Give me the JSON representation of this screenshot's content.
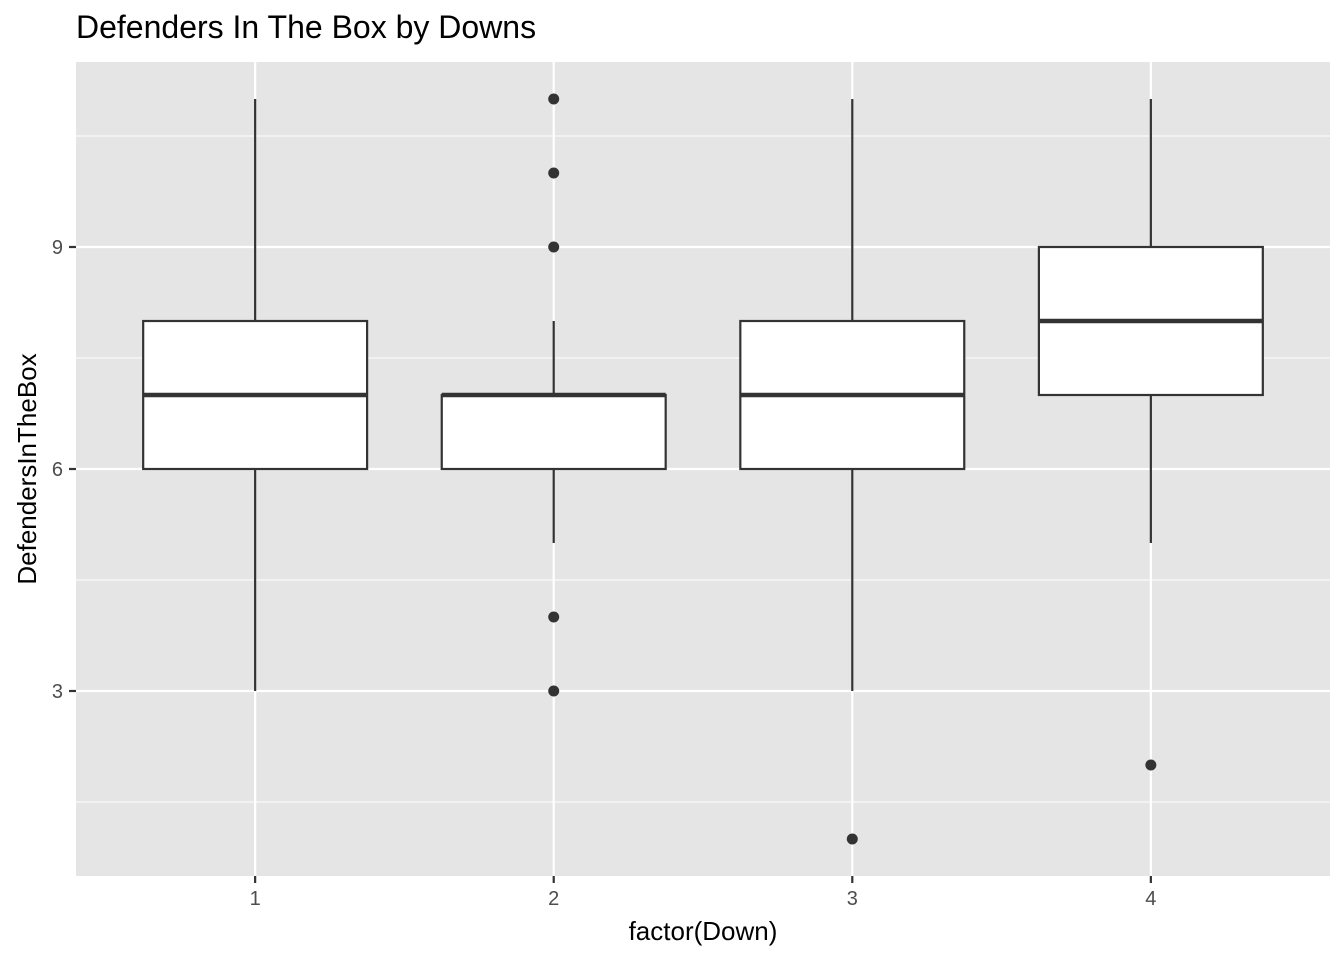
{
  "chart_data": {
    "type": "boxplot",
    "title": "Defenders In The Box by Downs",
    "xlabel": "factor(Down)",
    "ylabel": "DefendersInTheBox",
    "ylim": [
      0.5,
      11.5
    ],
    "y_ticks": [
      3,
      6,
      9
    ],
    "categories": [
      "1",
      "2",
      "3",
      "4"
    ],
    "boxes": [
      {
        "category": "1",
        "whisker_low": 3,
        "q1": 6,
        "median": 7,
        "q3": 8,
        "whisker_high": 11,
        "outliers": []
      },
      {
        "category": "2",
        "whisker_low": 5,
        "q1": 6,
        "median": 7,
        "q3": 7,
        "whisker_high": 8,
        "outliers": [
          3,
          4,
          9,
          10,
          11
        ]
      },
      {
        "category": "3",
        "whisker_low": 3,
        "q1": 6,
        "median": 7,
        "q3": 8,
        "whisker_high": 11,
        "outliers": [
          1
        ]
      },
      {
        "category": "4",
        "whisker_low": 5,
        "q1": 7,
        "median": 8,
        "q3": 9,
        "whisker_high": 11,
        "outliers": [
          2
        ]
      }
    ],
    "grid": true,
    "legend": "none",
    "colors": {
      "panel_background": "#e5e5e5",
      "grid": "#ffffff",
      "box_fill": "#ffffff",
      "box_line": "#333333",
      "tick_text": "#4d4d4d",
      "text": "#000000"
    }
  }
}
